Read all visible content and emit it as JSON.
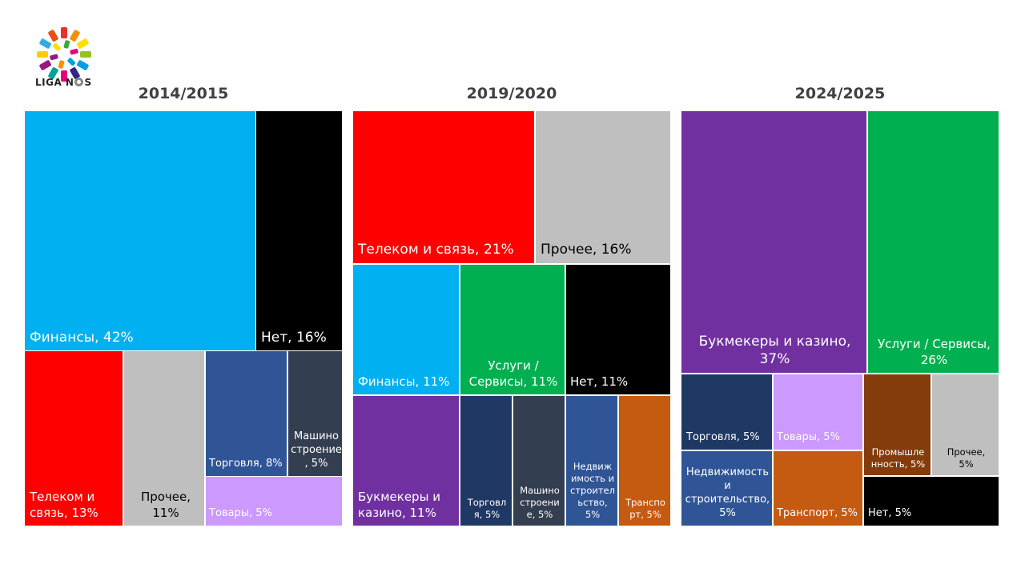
{
  "logo": {
    "text": "LIGA N",
    "text_suffix": "S",
    "icon": "liga-nos-ball-icon"
  },
  "chart_data": [
    {
      "type": "treemap",
      "title": "2014/2015",
      "items": [
        {
          "label": "Финансы, 42%",
          "category": "Финансы",
          "value": 42,
          "color": "#00B0F0"
        },
        {
          "label": "Нет, 16%",
          "category": "Нет",
          "value": 16,
          "color": "#000000"
        },
        {
          "label": "Телеком и связь, 13%",
          "category": "Телеком и связь",
          "value": 13,
          "color": "#FF0000"
        },
        {
          "label": "Прочее, 11%",
          "category": "Прочее",
          "value": 11,
          "color": "#BFBFBF"
        },
        {
          "label": "Торговля, 8%",
          "category": "Торговля",
          "value": 8,
          "color": "#2F5597"
        },
        {
          "label": "Машиностроение, 5%",
          "category": "Машиностроение",
          "value": 5,
          "color": "#333F50"
        },
        {
          "label": "Товары, 5%",
          "category": "Товары",
          "value": 5,
          "color": "#CC99FF"
        }
      ]
    },
    {
      "type": "treemap",
      "title": "2019/2020",
      "items": [
        {
          "label": "Телеком и связь, 21%",
          "category": "Телеком и связь",
          "value": 21,
          "color": "#FF0000"
        },
        {
          "label": "Прочее, 16%",
          "category": "Прочее",
          "value": 16,
          "color": "#BFBFBF"
        },
        {
          "label": "Финансы, 11%",
          "category": "Финансы",
          "value": 11,
          "color": "#00B0F0"
        },
        {
          "label": "Услуги / Сервисы, 11%",
          "category": "Услуги / Сервисы",
          "value": 11,
          "color": "#00B050"
        },
        {
          "label": "Нет, 11%",
          "category": "Нет",
          "value": 11,
          "color": "#000000"
        },
        {
          "label": "Букмекеры и казино, 11%",
          "category": "Букмекеры и казино",
          "value": 11,
          "color": "#7030A0"
        },
        {
          "label": "Торговля, 5%",
          "category": "Торговля",
          "value": 5,
          "color": "#203864"
        },
        {
          "label": "Машиностроение, 5%",
          "category": "Машиностроение",
          "value": 5,
          "color": "#333F50"
        },
        {
          "label": "Недвижимость и строительство, 5%",
          "category": "Недвижимость и строительство",
          "value": 5,
          "color": "#2F5597"
        },
        {
          "label": "Транспорт, 5%",
          "category": "Транспорт",
          "value": 5,
          "color": "#C55A11"
        }
      ]
    },
    {
      "type": "treemap",
      "title": "2024/2025",
      "items": [
        {
          "label": "Букмекеры и казино, 37%",
          "category": "Букмекеры и казино",
          "value": 37,
          "color": "#7030A0"
        },
        {
          "label": "Услуги / Сервисы, 26%",
          "category": "Услуги / Сервисы",
          "value": 26,
          "color": "#00B050"
        },
        {
          "label": "Торговля, 5%",
          "category": "Торговля",
          "value": 5,
          "color": "#203864"
        },
        {
          "label": "Товары, 5%",
          "category": "Товары",
          "value": 5,
          "color": "#CC99FF"
        },
        {
          "label": "Промышленность, 5%",
          "category": "Промышленность",
          "value": 5,
          "color": "#843C0C"
        },
        {
          "label": "Прочее, 5%",
          "category": "Прочее",
          "value": 5,
          "color": "#BFBFBF"
        },
        {
          "label": "Недвижимость и строительство, 5%",
          "category": "Недвижимость и строительство",
          "value": 5,
          "color": "#2F5597"
        },
        {
          "label": "Транспорт, 5%",
          "category": "Транспорт",
          "value": 5,
          "color": "#C55A11"
        },
        {
          "label": "Нет, 5%",
          "category": "Нет",
          "value": 5,
          "color": "#000000"
        }
      ]
    }
  ]
}
